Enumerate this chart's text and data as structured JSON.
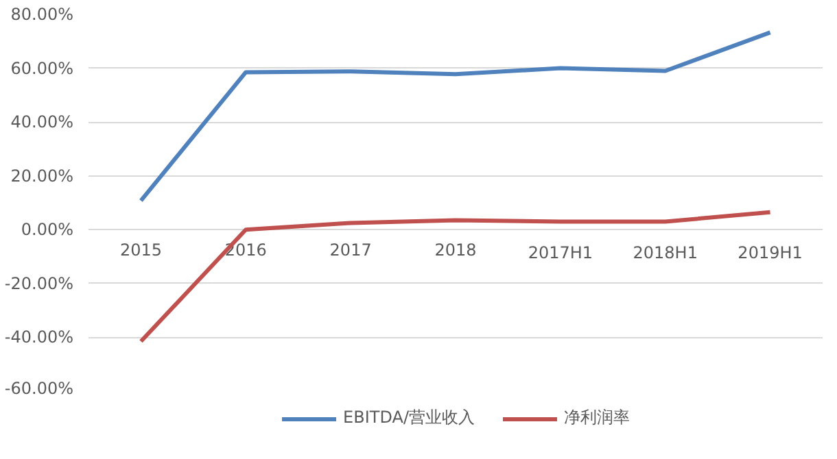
{
  "chart_data": {
    "type": "line",
    "categories": [
      "2015",
      "2016",
      "2017",
      "2018",
      "2017H1",
      "2018H1",
      "2019H1"
    ],
    "series": [
      {
        "name": "EBITDA/营业收入",
        "color": "#4f81bd",
        "values": [
          10.8,
          58.5,
          58.8,
          57.8,
          60,
          59,
          73.3
        ]
      },
      {
        "name": "净利润率",
        "color": "#c0504d",
        "values": [
          -41.5,
          0,
          2.5,
          3.5,
          3,
          3,
          6.5
        ]
      }
    ],
    "ylim": [
      -60,
      80
    ],
    "yticks": [
      {
        "value": -60,
        "label": "-60.00%"
      },
      {
        "value": -40,
        "label": "-40.00%"
      },
      {
        "value": -20,
        "label": "-20.00%"
      },
      {
        "value": 0,
        "label": "0.00%"
      },
      {
        "value": 20,
        "label": "20.00%"
      },
      {
        "value": 40,
        "label": "40.00%"
      },
      {
        "value": 60,
        "label": "60.00%"
      },
      {
        "value": 80,
        "label": "80.00%"
      }
    ],
    "grid": "y",
    "legend": "bottom",
    "marker": "none",
    "line_style": "solid"
  }
}
